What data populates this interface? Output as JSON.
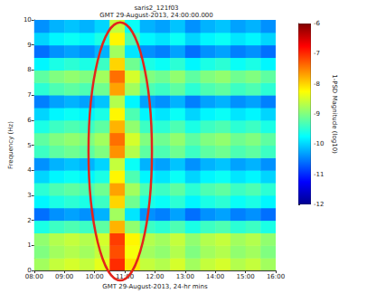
{
  "chart_data": {
    "type": "heatmap",
    "title": "saris2_121f03",
    "subtitle": "GMT 29-August-2013, 24:00:00.000",
    "xlabel": "GMT 29-August-2013, 24-hr mins",
    "ylabel": "Frequency (Hz)",
    "xlim": [
      8,
      16
    ],
    "xticks": [
      {
        "value": 8,
        "label": "08:00"
      },
      {
        "value": 9,
        "label": "09:00"
      },
      {
        "value": 10,
        "label": "10:00"
      },
      {
        "value": 11,
        "label": "11:00"
      },
      {
        "value": 12,
        "label": "12:00"
      },
      {
        "value": 13,
        "label": "13:00"
      },
      {
        "value": 14,
        "label": "14:00"
      },
      {
        "value": 15,
        "label": "15:00"
      },
      {
        "value": 16,
        "label": "16:00"
      }
    ],
    "ylim": [
      0,
      10
    ],
    "yticks": [
      0,
      1,
      2,
      3,
      4,
      5,
      6,
      7,
      8,
      9,
      10
    ],
    "x_edges": [
      8,
      8.5,
      9,
      9.5,
      10,
      10.5,
      11,
      11.5,
      12,
      12.5,
      13,
      13.5,
      14,
      14.5,
      15,
      15.5,
      16
    ],
    "y_edges": [
      0,
      0.5,
      1,
      1.5,
      2,
      2.5,
      3,
      3.5,
      4,
      4.5,
      5,
      5.5,
      6,
      6.5,
      7,
      7.5,
      8,
      8.5,
      9,
      9.5,
      10
    ],
    "cells": [
      [
        -8.8,
        -8.6,
        -8.5,
        -8.6,
        -8.4,
        -7.0,
        -8.1,
        -8.6,
        -8.7,
        -8.5,
        -8.8,
        -8.6,
        -8.5,
        -8.7,
        -8.6,
        -8.8
      ],
      [
        -9.0,
        -8.8,
        -8.7,
        -8.8,
        -8.6,
        -7.2,
        -8.3,
        -8.8,
        -8.9,
        -8.7,
        -9.0,
        -8.8,
        -8.7,
        -8.9,
        -8.8,
        -9.0
      ],
      [
        -8.9,
        -8.7,
        -8.6,
        -8.7,
        -8.5,
        -7.1,
        -8.2,
        -8.7,
        -8.8,
        -8.6,
        -8.9,
        -8.7,
        -8.6,
        -8.8,
        -8.7,
        -8.9
      ],
      [
        -9.6,
        -9.4,
        -9.3,
        -9.4,
        -9.2,
        -7.8,
        -8.9,
        -9.4,
        -9.5,
        -9.3,
        -9.6,
        -9.4,
        -9.3,
        -9.5,
        -9.4,
        -9.6
      ],
      [
        -10.6,
        -10.4,
        -10.3,
        -10.4,
        -10.2,
        -8.8,
        -9.9,
        -10.4,
        -10.5,
        -10.3,
        -10.6,
        -10.4,
        -10.3,
        -10.5,
        -10.4,
        -10.6
      ],
      [
        -9.8,
        -9.6,
        -9.5,
        -9.6,
        -9.4,
        -8.0,
        -9.1,
        -9.6,
        -9.7,
        -9.5,
        -9.8,
        -9.6,
        -9.5,
        -9.7,
        -9.6,
        -9.8
      ],
      [
        -9.5,
        -9.3,
        -9.2,
        -9.3,
        -9.1,
        -7.7,
        -8.8,
        -9.3,
        -9.4,
        -9.2,
        -9.5,
        -9.3,
        -9.2,
        -9.4,
        -9.3,
        -9.5
      ],
      [
        -10.0,
        -9.8,
        -9.7,
        -9.8,
        -9.6,
        -8.2,
        -9.3,
        -9.8,
        -9.9,
        -9.7,
        -10.0,
        -9.8,
        -9.7,
        -9.9,
        -9.8,
        -10.0
      ],
      [
        -10.4,
        -10.2,
        -10.1,
        -10.2,
        -10.0,
        -8.6,
        -9.7,
        -10.2,
        -10.3,
        -10.1,
        -10.4,
        -10.2,
        -10.1,
        -10.3,
        -10.2,
        -10.4
      ],
      [
        -9.4,
        -9.2,
        -9.1,
        -9.2,
        -9.0,
        -7.6,
        -8.7,
        -9.2,
        -9.3,
        -9.1,
        -9.4,
        -9.2,
        -9.1,
        -9.3,
        -9.2,
        -9.4
      ],
      [
        -9.2,
        -9.0,
        -8.9,
        -9.0,
        -8.8,
        -7.4,
        -8.5,
        -9.0,
        -9.1,
        -8.9,
        -9.2,
        -9.0,
        -8.9,
        -9.1,
        -9.0,
        -9.2
      ],
      [
        -9.6,
        -9.4,
        -9.3,
        -9.4,
        -9.2,
        -7.8,
        -8.9,
        -9.4,
        -9.5,
        -9.3,
        -9.6,
        -9.4,
        -9.3,
        -9.5,
        -9.4,
        -9.6
      ],
      [
        -10.0,
        -9.8,
        -9.7,
        -9.8,
        -9.6,
        -8.2,
        -9.3,
        -9.8,
        -9.9,
        -9.7,
        -10.0,
        -9.8,
        -9.7,
        -9.9,
        -9.8,
        -10.0
      ],
      [
        -10.5,
        -10.3,
        -10.2,
        -10.3,
        -10.1,
        -8.7,
        -9.8,
        -10.3,
        -10.4,
        -10.2,
        -10.5,
        -10.3,
        -10.2,
        -10.4,
        -10.3,
        -10.5
      ],
      [
        -9.5,
        -9.3,
        -9.2,
        -9.3,
        -9.1,
        -7.7,
        -8.8,
        -9.3,
        -9.4,
        -9.2,
        -9.5,
        -9.3,
        -9.2,
        -9.4,
        -9.3,
        -9.5
      ],
      [
        -9.2,
        -9.0,
        -8.9,
        -9.0,
        -8.8,
        -7.4,
        -8.5,
        -9.0,
        -9.1,
        -8.9,
        -9.2,
        -9.0,
        -8.9,
        -9.1,
        -9.0,
        -9.2
      ],
      [
        -9.8,
        -9.6,
        -9.5,
        -9.6,
        -9.4,
        -8.0,
        -9.1,
        -9.6,
        -9.7,
        -9.5,
        -9.8,
        -9.6,
        -9.5,
        -9.7,
        -9.6,
        -9.8
      ],
      [
        -10.6,
        -10.4,
        -10.3,
        -10.4,
        -10.2,
        -8.8,
        -9.9,
        -10.4,
        -10.5,
        -10.3,
        -10.6,
        -10.4,
        -10.3,
        -10.5,
        -10.4,
        -10.6
      ],
      [
        -10.0,
        -9.8,
        -9.7,
        -9.8,
        -9.6,
        -8.2,
        -9.3,
        -9.8,
        -9.9,
        -9.7,
        -10.0,
        -9.8,
        -9.7,
        -9.9,
        -9.8,
        -10.0
      ],
      [
        -10.4,
        -10.2,
        -10.1,
        -10.2,
        -10.0,
        -8.6,
        -9.7,
        -10.2,
        -10.3,
        -10.1,
        -10.4,
        -10.2,
        -10.1,
        -10.3,
        -10.2,
        -10.4
      ]
    ],
    "colorbar": {
      "label": "1-PSD Magnitude (log10)",
      "range": [
        -12,
        -6
      ],
      "ticks": [
        -12,
        -11,
        -10,
        -9,
        -8,
        -7,
        -6
      ]
    },
    "highlight": {
      "x": [
        9.8,
        11.9
      ],
      "y": [
        -0.4,
        9.9
      ],
      "color": "#e3241b"
    }
  }
}
